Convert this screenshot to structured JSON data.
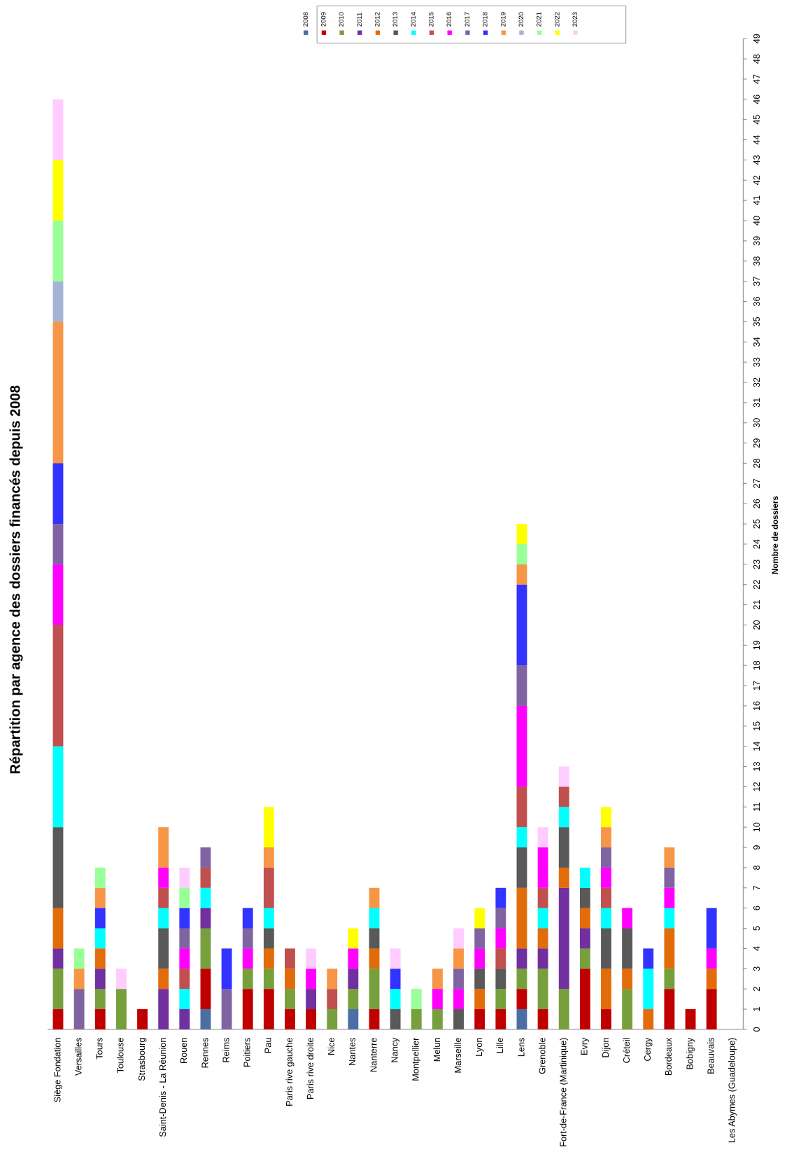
{
  "chart_data": {
    "type": "stacked_bar",
    "title": "Répartition par agence des dossiers financés depuis 2008",
    "ylabel": "Nombre de dossiers",
    "categories": [
      "Siège Fondation",
      "Versailles",
      "Tours",
      "Toulouse",
      "Strasbourg",
      "Saint-Denis - La Réunion",
      "Rouen",
      "Rennes",
      "Reims",
      "Poitiers",
      "Pau",
      "Paris rive gauche",
      "Paris rive droite",
      "Nice",
      "Nantes",
      "Nanterre",
      "Nancy",
      "Montpellier",
      "Melun",
      "Marseille",
      "Lyon",
      "Lille",
      "Lens",
      "Grenoble",
      "Fort-de-France (Martinique)",
      "Evry",
      "Dijon",
      "Créteil",
      "Cergy",
      "Bordeaux",
      "Bobigny",
      "Beauvais",
      "Les Abymes (Guadeloupe)"
    ],
    "series": [
      {
        "name": "2008",
        "color": "#4a6fa5",
        "values": [
          0,
          0,
          0,
          0,
          0,
          0,
          0,
          1,
          0,
          0,
          0,
          0,
          0,
          0,
          1,
          0,
          0,
          0,
          0,
          0,
          0,
          0,
          1,
          0,
          0,
          0,
          0,
          0,
          0,
          0,
          0,
          0,
          0
        ]
      },
      {
        "name": "2009",
        "color": "#c00000",
        "values": [
          1,
          0,
          1,
          0,
          1,
          0,
          0,
          2,
          0,
          2,
          2,
          1,
          1,
          0,
          0,
          1,
          0,
          0,
          0,
          0,
          1,
          1,
          1,
          1,
          0,
          3,
          1,
          0,
          0,
          2,
          1,
          2,
          0
        ]
      },
      {
        "name": "2010",
        "color": "#77a03c",
        "values": [
          2,
          0,
          1,
          2,
          0,
          0,
          0,
          2,
          0,
          1,
          1,
          1,
          0,
          1,
          1,
          2,
          0,
          1,
          1,
          0,
          0,
          1,
          1,
          2,
          2,
          1,
          0,
          2,
          0,
          1,
          0,
          0,
          0
        ]
      },
      {
        "name": "2011",
        "color": "#7030a0",
        "values": [
          1,
          0,
          1,
          0,
          0,
          2,
          1,
          1,
          0,
          0,
          0,
          0,
          1,
          0,
          1,
          0,
          0,
          0,
          0,
          0,
          0,
          0,
          1,
          1,
          5,
          1,
          0,
          0,
          0,
          0,
          0,
          0,
          0
        ]
      },
      {
        "name": "2012",
        "color": "#e36c0a",
        "values": [
          2,
          0,
          1,
          0,
          0,
          1,
          0,
          0,
          0,
          0,
          1,
          1,
          0,
          0,
          0,
          1,
          0,
          0,
          0,
          0,
          1,
          0,
          3,
          1,
          1,
          1,
          2,
          1,
          1,
          2,
          0,
          1,
          0
        ]
      },
      {
        "name": "2013",
        "color": "#595959",
        "values": [
          4,
          0,
          0,
          0,
          0,
          2,
          0,
          0,
          0,
          0,
          1,
          0,
          0,
          0,
          0,
          1,
          1,
          0,
          0,
          1,
          1,
          1,
          2,
          0,
          2,
          1,
          2,
          2,
          0,
          0,
          0,
          0,
          0
        ]
      },
      {
        "name": "2014",
        "color": "#00ffff",
        "values": [
          4,
          0,
          1,
          0,
          0,
          1,
          1,
          1,
          0,
          0,
          1,
          0,
          0,
          0,
          0,
          1,
          1,
          0,
          0,
          0,
          0,
          0,
          1,
          1,
          1,
          1,
          1,
          0,
          2,
          1,
          0,
          0,
          0
        ]
      },
      {
        "name": "2015",
        "color": "#c0504d",
        "values": [
          6,
          0,
          0,
          0,
          0,
          1,
          1,
          1,
          0,
          0,
          2,
          1,
          0,
          1,
          0,
          0,
          0,
          0,
          0,
          0,
          0,
          1,
          2,
          1,
          1,
          0,
          1,
          0,
          0,
          0,
          0,
          0,
          0
        ]
      },
      {
        "name": "2016",
        "color": "#ff00ff",
        "values": [
          3,
          0,
          0,
          0,
          0,
          1,
          1,
          0,
          0,
          1,
          0,
          0,
          1,
          0,
          1,
          0,
          0,
          0,
          1,
          1,
          1,
          1,
          4,
          2,
          0,
          0,
          1,
          1,
          0,
          1,
          0,
          1,
          0
        ]
      },
      {
        "name": "2017",
        "color": "#8064a2",
        "values": [
          2,
          2,
          0,
          0,
          0,
          0,
          1,
          1,
          2,
          1,
          0,
          0,
          0,
          0,
          0,
          0,
          0,
          0,
          0,
          1,
          1,
          1,
          2,
          0,
          0,
          0,
          1,
          0,
          0,
          1,
          0,
          0,
          0
        ]
      },
      {
        "name": "2018",
        "color": "#3333ff",
        "values": [
          3,
          0,
          1,
          0,
          0,
          0,
          1,
          0,
          2,
          1,
          0,
          0,
          0,
          0,
          0,
          0,
          1,
          0,
          0,
          0,
          0,
          1,
          4,
          0,
          0,
          0,
          0,
          0,
          1,
          0,
          0,
          2,
          0
        ]
      },
      {
        "name": "2019",
        "color": "#f79646",
        "values": [
          7,
          1,
          1,
          0,
          0,
          2,
          0,
          0,
          0,
          0,
          1,
          0,
          0,
          1,
          0,
          1,
          0,
          0,
          1,
          1,
          0,
          0,
          1,
          0,
          0,
          0,
          1,
          0,
          0,
          1,
          0,
          0,
          0
        ]
      },
      {
        "name": "2020",
        "color": "#a5b4d6",
        "values": [
          2,
          0,
          0,
          0,
          0,
          0,
          0,
          0,
          0,
          0,
          0,
          0,
          0,
          0,
          0,
          0,
          0,
          0,
          0,
          0,
          0,
          0,
          0,
          0,
          0,
          0,
          0,
          0,
          0,
          0,
          0,
          0,
          0
        ]
      },
      {
        "name": "2021",
        "color": "#99ff99",
        "values": [
          3,
          1,
          1,
          0,
          0,
          0,
          1,
          0,
          0,
          0,
          0,
          0,
          0,
          0,
          0,
          0,
          0,
          1,
          0,
          0,
          0,
          0,
          1,
          0,
          0,
          0,
          0,
          0,
          0,
          0,
          0,
          0,
          0
        ]
      },
      {
        "name": "2022",
        "color": "#ffff00",
        "values": [
          3,
          0,
          0,
          0,
          0,
          0,
          0,
          0,
          0,
          0,
          2,
          0,
          0,
          0,
          1,
          0,
          0,
          0,
          0,
          0,
          1,
          0,
          1,
          0,
          0,
          0,
          1,
          0,
          0,
          0,
          0,
          0,
          0
        ]
      },
      {
        "name": "2023",
        "color": "#ffccff",
        "values": [
          3,
          0,
          0,
          1,
          0,
          0,
          1,
          0,
          0,
          0,
          0,
          0,
          1,
          0,
          0,
          0,
          1,
          0,
          0,
          1,
          0,
          0,
          0,
          1,
          1,
          0,
          0,
          0,
          0,
          0,
          0,
          0,
          0
        ]
      }
    ],
    "ylim": [
      0,
      49
    ],
    "yticks": [
      0,
      1,
      2,
      3,
      4,
      5,
      6,
      7,
      8,
      9,
      10,
      11,
      12,
      13,
      14,
      15,
      16,
      17,
      18,
      19,
      20,
      21,
      22,
      23,
      24,
      25,
      26,
      27,
      28,
      29,
      30,
      31,
      32,
      33,
      34,
      35,
      36,
      37,
      38,
      39,
      40,
      41,
      42,
      43,
      44,
      45,
      46,
      47,
      48,
      49
    ],
    "grid": false,
    "legend": "top"
  }
}
